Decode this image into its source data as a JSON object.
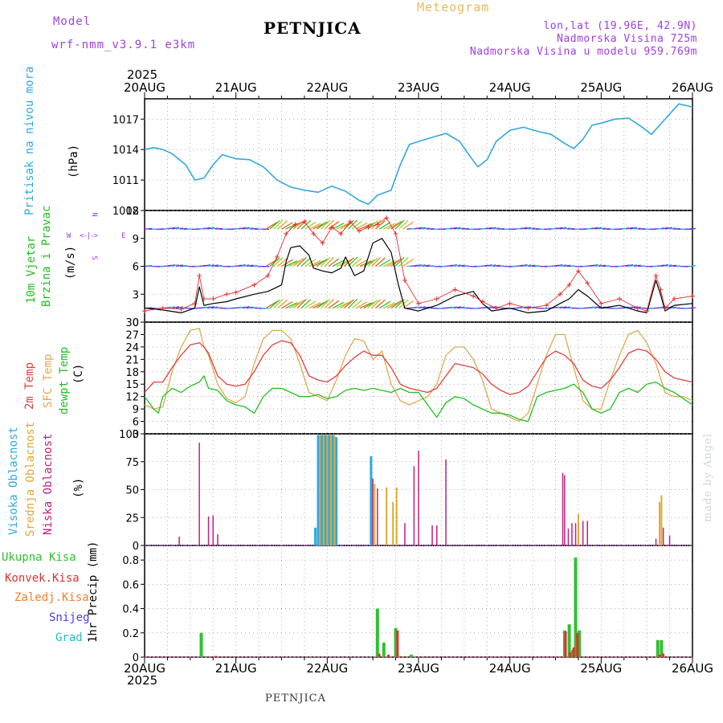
{
  "header": {
    "model_label": "Model",
    "model_name": "wrf-nmm_v3.9.1  e3km",
    "station": "PETNJICA",
    "meteogram": "Meteogram",
    "lonlat": "lon,lat (19.96E, 42.9N)",
    "elevation": "Nadmorska Visina 725m",
    "model_elevation": "Nadmorska Visina u modelu 959.769m",
    "year": "2025",
    "footer_station": "PETNJICA",
    "credit": "made by Angel"
  },
  "colors": {
    "pressure": "#30a8e0",
    "wind_speed": "#000000",
    "gust": "#e03030",
    "temp2m": "#e04040",
    "sfc_temp": "#e0a850",
    "dewpoint": "#20c020",
    "high_cloud": "#30a8e0",
    "mid_cloud": "#e0a830",
    "low_cloud": "#c02080",
    "total_precip": "#30c030",
    "conv_precip": "#e03030",
    "frozen_precip": "#f08030",
    "snow": "#4040e0",
    "hail": "#20c0c0",
    "grid": "#999999"
  },
  "chart_data": [
    {
      "type": "line",
      "name": "pressure",
      "ylabel_parts": [
        "Pritisak na nivou mora",
        "(hPa)"
      ],
      "ylim": [
        1008,
        1019
      ],
      "yticks": [
        "1008",
        "1011",
        "1014",
        "1017"
      ],
      "x_days": [
        "20AUG",
        "21AUG",
        "22AUG",
        "23AUG",
        "24AUG",
        "25AUG",
        "26AUG"
      ],
      "series": [
        {
          "name": "Sea level pressure",
          "x": [
            0,
            0.1,
            0.2,
            0.3,
            0.45,
            0.55,
            0.65,
            0.75,
            0.85,
            1.0,
            1.15,
            1.3,
            1.45,
            1.6,
            1.75,
            1.9,
            2.05,
            2.2,
            2.35,
            2.45,
            2.55,
            2.7,
            2.8,
            2.9,
            3.0,
            3.15,
            3.3,
            3.45,
            3.55,
            3.65,
            3.75,
            3.85,
            4.0,
            4.15,
            4.3,
            4.45,
            4.6,
            4.7,
            4.8,
            4.9,
            5.0,
            5.15,
            5.3,
            5.45,
            5.55,
            5.65,
            5.75,
            5.85,
            6.0
          ],
          "values": [
            1014.0,
            1014.2,
            1014.0,
            1013.6,
            1012.5,
            1011.0,
            1011.2,
            1012.5,
            1013.5,
            1013.1,
            1013.0,
            1012.3,
            1011.0,
            1010.3,
            1010.0,
            1009.8,
            1010.4,
            1009.9,
            1009.0,
            1008.6,
            1009.5,
            1010.0,
            1012.5,
            1014.5,
            1014.8,
            1015.2,
            1015.6,
            1014.8,
            1013.5,
            1012.3,
            1013.0,
            1014.8,
            1015.9,
            1016.2,
            1015.8,
            1015.5,
            1014.6,
            1014.1,
            1015.0,
            1016.4,
            1016.6,
            1017.0,
            1017.1,
            1016.2,
            1015.5,
            1016.5,
            1017.5,
            1018.5,
            1018.2
          ]
        }
      ]
    },
    {
      "type": "line",
      "name": "wind",
      "ylabel_parts": [
        "10m Vjetar",
        "Brzina i Pravac",
        "(m/s)"
      ],
      "compass": [
        "N",
        "W",
        "E",
        "S"
      ],
      "ylim": [
        0,
        12
      ],
      "yticks": [
        "0",
        "3",
        "6",
        "9",
        "12"
      ],
      "series": [
        {
          "name": "Wind speed",
          "x": [
            0,
            0.2,
            0.4,
            0.55,
            0.6,
            0.65,
            0.75,
            0.9,
            1.0,
            1.2,
            1.35,
            1.5,
            1.55,
            1.6,
            1.7,
            1.8,
            1.85,
            1.95,
            2.05,
            2.15,
            2.2,
            2.3,
            2.4,
            2.5,
            2.6,
            2.7,
            2.78,
            2.85,
            3.0,
            3.2,
            3.4,
            3.6,
            3.7,
            3.8,
            4.0,
            4.2,
            4.4,
            4.55,
            4.65,
            4.75,
            4.85,
            5.0,
            5.2,
            5.4,
            5.5,
            5.6,
            5.65,
            5.7,
            5.8,
            6.0
          ],
          "values": [
            1.5,
            1.3,
            1.0,
            1.5,
            3.8,
            1.8,
            2.0,
            2.2,
            2.5,
            3.0,
            3.3,
            4.0,
            6.5,
            8.0,
            8.2,
            7.2,
            5.8,
            5.5,
            5.3,
            5.8,
            7.0,
            5.0,
            5.5,
            8.5,
            9.0,
            7.5,
            4.0,
            1.5,
            1.2,
            1.8,
            2.8,
            3.3,
            2.0,
            1.2,
            1.5,
            1.0,
            1.2,
            2.0,
            2.5,
            3.5,
            2.8,
            1.5,
            1.8,
            1.2,
            1.0,
            4.5,
            3.0,
            1.2,
            1.8,
            2.0
          ]
        },
        {
          "name": "Gust",
          "x": [
            0,
            0.2,
            0.4,
            0.55,
            0.6,
            0.65,
            0.75,
            0.9,
            1.0,
            1.2,
            1.35,
            1.45,
            1.55,
            1.65,
            1.75,
            1.85,
            1.95,
            2.05,
            2.15,
            2.25,
            2.35,
            2.45,
            2.55,
            2.65,
            2.75,
            2.85,
            3.0,
            3.2,
            3.4,
            3.6,
            3.7,
            3.85,
            4.0,
            4.2,
            4.4,
            4.55,
            4.65,
            4.75,
            4.85,
            5.0,
            5.2,
            5.4,
            5.5,
            5.6,
            5.65,
            5.7,
            5.8,
            6.0
          ],
          "values": [
            1.2,
            1.5,
            1.4,
            2.0,
            5.0,
            2.5,
            2.5,
            3.0,
            3.2,
            4.0,
            5.0,
            7.0,
            9.5,
            10.5,
            10.8,
            9.5,
            8.5,
            10.2,
            9.5,
            10.8,
            9.8,
            10.2,
            10.5,
            11.2,
            9.5,
            4.5,
            2.0,
            2.5,
            3.5,
            2.8,
            2.2,
            1.5,
            2.0,
            1.5,
            1.8,
            3.0,
            4.0,
            5.5,
            4.2,
            2.0,
            2.5,
            1.5,
            1.2,
            5.0,
            3.5,
            1.5,
            2.5,
            2.8
          ]
        }
      ]
    },
    {
      "type": "line",
      "name": "temperature",
      "ylabel_parts": [
        "2m Temp",
        "SFC Temp",
        "dewpt Temp",
        "(C)"
      ],
      "ylim": [
        3,
        30
      ],
      "yticks": [
        "3",
        "6",
        "9",
        "12",
        "15",
        "18",
        "21",
        "24",
        "27",
        "30"
      ],
      "series": [
        {
          "name": "2m Temp",
          "x": [
            0,
            0.1,
            0.2,
            0.3,
            0.4,
            0.5,
            0.6,
            0.65,
            0.7,
            0.8,
            0.9,
            1.0,
            1.1,
            1.2,
            1.3,
            1.4,
            1.5,
            1.6,
            1.7,
            1.8,
            1.9,
            2.0,
            2.1,
            2.2,
            2.3,
            2.4,
            2.5,
            2.6,
            2.7,
            2.8,
            2.9,
            3.0,
            3.1,
            3.2,
            3.3,
            3.4,
            3.5,
            3.6,
            3.7,
            3.8,
            3.9,
            4.0,
            4.1,
            4.2,
            4.3,
            4.4,
            4.5,
            4.6,
            4.7,
            4.8,
            4.9,
            5.0,
            5.1,
            5.2,
            5.3,
            5.4,
            5.5,
            5.6,
            5.7,
            5.8,
            5.9,
            6.0
          ],
          "values": [
            13,
            15.5,
            15.5,
            19,
            22,
            24.5,
            25,
            24,
            22.5,
            17,
            15,
            14.5,
            15,
            18,
            22,
            24.5,
            25.5,
            25,
            22,
            17,
            16,
            15.5,
            17,
            19.5,
            21.5,
            23,
            22,
            22,
            19,
            15,
            14,
            13.5,
            13,
            14,
            17,
            20,
            19.5,
            19,
            17.5,
            15,
            13.5,
            12.5,
            13,
            14.5,
            18,
            21.5,
            23,
            22,
            20,
            16,
            14.5,
            14,
            16,
            19,
            22.5,
            23.5,
            23,
            21,
            18,
            16.5,
            16,
            15.5
          ]
        },
        {
          "name": "SFC Temp",
          "x": [
            0,
            0.1,
            0.2,
            0.3,
            0.4,
            0.5,
            0.6,
            0.65,
            0.7,
            0.8,
            0.9,
            1.0,
            1.1,
            1.2,
            1.3,
            1.4,
            1.5,
            1.6,
            1.7,
            1.8,
            1.9,
            2.0,
            2.1,
            2.2,
            2.3,
            2.4,
            2.5,
            2.6,
            2.7,
            2.8,
            2.9,
            3.0,
            3.1,
            3.2,
            3.3,
            3.4,
            3.5,
            3.6,
            3.7,
            3.8,
            3.9,
            4.0,
            4.1,
            4.2,
            4.3,
            4.4,
            4.5,
            4.6,
            4.7,
            4.8,
            4.9,
            5.0,
            5.1,
            5.2,
            5.3,
            5.4,
            5.5,
            5.6,
            5.7,
            5.8,
            5.9,
            6.0
          ],
          "values": [
            10,
            9,
            9.5,
            18,
            24,
            28,
            28.5,
            24,
            22,
            15,
            11.5,
            10.5,
            12,
            20,
            26,
            28,
            28,
            26,
            20,
            13,
            12,
            11,
            16,
            22,
            26,
            25.5,
            21,
            23,
            15,
            11,
            10,
            11,
            12,
            15,
            22,
            24,
            24,
            21,
            16,
            9,
            8,
            7,
            6,
            8,
            15,
            22,
            27,
            27,
            19,
            11,
            9,
            9,
            16,
            22,
            27,
            28,
            25,
            20,
            13,
            12,
            12,
            11
          ]
        },
        {
          "name": "dewpt Temp",
          "x": [
            0,
            0.1,
            0.15,
            0.2,
            0.3,
            0.4,
            0.5,
            0.6,
            0.65,
            0.7,
            0.8,
            0.9,
            1.0,
            1.1,
            1.2,
            1.3,
            1.4,
            1.5,
            1.6,
            1.7,
            1.8,
            1.9,
            2.0,
            2.1,
            2.2,
            2.3,
            2.4,
            2.5,
            2.6,
            2.7,
            2.8,
            2.9,
            3.0,
            3.1,
            3.2,
            3.3,
            3.4,
            3.5,
            3.6,
            3.7,
            3.8,
            3.9,
            4.0,
            4.1,
            4.2,
            4.3,
            4.4,
            4.5,
            4.6,
            4.7,
            4.8,
            4.9,
            5.0,
            5.1,
            5.2,
            5.3,
            5.4,
            5.5,
            5.6,
            5.7,
            5.8,
            5.9,
            6.0
          ],
          "values": [
            12,
            9,
            8,
            12,
            14,
            13,
            14.5,
            15.5,
            17,
            14,
            13.5,
            11,
            10,
            9.5,
            8,
            12,
            14,
            14,
            13,
            12,
            12,
            12.5,
            11.5,
            12,
            13.5,
            14,
            13.5,
            14,
            13.5,
            13,
            14,
            13,
            13,
            10,
            7,
            10.5,
            12,
            11.5,
            10,
            9,
            8,
            8,
            7.5,
            6.5,
            6,
            12,
            13,
            13.5,
            14,
            15,
            13,
            9,
            8,
            9,
            13,
            14,
            13,
            15,
            15.5,
            14,
            13,
            11.5,
            10
          ]
        }
      ]
    },
    {
      "type": "bar",
      "name": "clouds",
      "ylabel_parts": [
        "Visoka Oblacnost",
        "Srednja Oblacnost",
        "Niska Oblacnost",
        "(%)"
      ],
      "ylim": [
        0,
        100
      ],
      "yticks": [
        "0",
        "25",
        "50",
        "75",
        "100"
      ],
      "series": [
        {
          "name": "Visoka Oblacnost",
          "x": [
            1.87,
            1.9,
            1.94,
            1.98,
            2.02,
            2.06,
            2.1,
            2.48
          ],
          "values": [
            16,
            99,
            99,
            99,
            99,
            99,
            97,
            80
          ]
        },
        {
          "name": "Srednja Oblacnost",
          "x": [
            1.92,
            1.96,
            2.0,
            2.04,
            2.08,
            2.52,
            2.65,
            2.72,
            2.76,
            4.75,
            5.64,
            5.66
          ],
          "values": [
            99,
            99,
            99,
            99,
            99,
            55,
            52,
            39,
            52,
            28,
            39,
            45
          ]
        },
        {
          "name": "Niska Oblacnost",
          "x": [
            0.38,
            0.6,
            0.7,
            0.75,
            0.8,
            2.5,
            2.55,
            2.85,
            2.95,
            3.0,
            3.15,
            3.2,
            3.3,
            4.58,
            4.6,
            4.64,
            4.68,
            4.72,
            4.8,
            4.85,
            5.6,
            5.68,
            5.75
          ],
          "values": [
            8,
            92,
            26,
            27,
            10,
            60,
            51,
            20,
            71,
            85,
            18,
            18,
            77,
            65,
            63,
            15,
            20,
            20,
            22,
            22,
            6,
            16,
            9
          ]
        }
      ]
    },
    {
      "type": "bar",
      "name": "precipitation",
      "ylabel_parts": [
        "1hr Precip (mm)"
      ],
      "legend": [
        "Ukupna Kisa",
        "Konvek.Kisa",
        "Zaledj.Kisa",
        "Snijeg",
        "Grad"
      ],
      "ylim": [
        0,
        0.92
      ],
      "yticks": [
        "0",
        "0.2",
        "0.4",
        "0.6",
        "0.8"
      ],
      "x_days": [
        "20AUG",
        "21AUG",
        "22AUG",
        "23AUG",
        "24AUG",
        "25AUG",
        "26AUG"
      ],
      "series": [
        {
          "name": "Ukupna Kisa",
          "x": [
            0.62,
            2.55,
            2.62,
            2.75,
            2.92,
            4.6,
            4.65,
            4.69,
            4.72,
            4.76,
            5.62,
            5.66
          ],
          "values": [
            0.2,
            0.4,
            0.12,
            0.24,
            0.02,
            0.22,
            0.27,
            0.06,
            0.82,
            0.22,
            0.14,
            0.14
          ]
        },
        {
          "name": "Konvek.Kisa",
          "x": [
            0.78,
            2.57,
            2.67,
            2.77,
            4.61,
            4.66,
            4.7,
            4.74,
            5.64,
            5.68
          ],
          "values": [
            0.01,
            0.03,
            0.02,
            0.22,
            0.21,
            0.04,
            0.08,
            0.2,
            0.02,
            0.03
          ]
        }
      ]
    }
  ]
}
